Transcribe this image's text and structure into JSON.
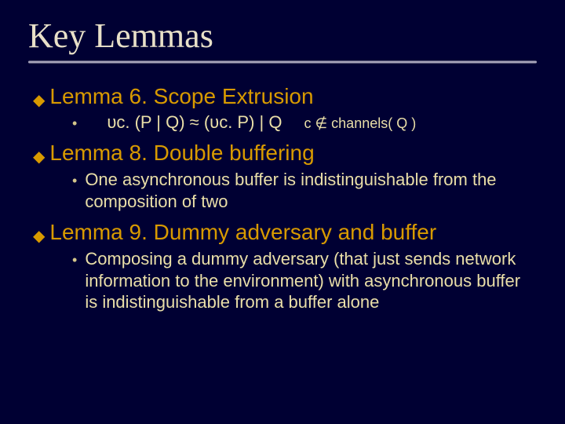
{
  "title": "Key Lemmas",
  "colors": {
    "background": "#000033",
    "title_text": "#e8e0c8",
    "lemma_heading": "#d89a00",
    "body_text": "#eadfa8",
    "diamond_bullet": "#d89a00",
    "round_bullet": "#d4c68a",
    "rule_gradient": [
      "#3a3a5a",
      "#9a96b0",
      "#d4d0e0",
      "#9a96b0",
      "#3a3a5a"
    ]
  },
  "typography": {
    "title_font": "Georgia serif",
    "title_size_pt": 33,
    "lemma_font": "Trebuchet MS sans-serif",
    "lemma_size_pt": 21,
    "body_font": "Comic Sans MS / handwritten sans",
    "body_size_pt": 17,
    "condition_size_pt": 14
  },
  "lemmas": [
    {
      "heading": "Lemma 6. Scope Extrusion",
      "formula": "υc. (P | Q)  ≈  (υc. P) | Q",
      "condition": "c ∉ channels( Q )"
    },
    {
      "heading": "Lemma 8. Double buffering",
      "body": "One asynchronous buffer is indistinguishable from the composition of two"
    },
    {
      "heading": "Lemma 9. Dummy adversary and buffer",
      "body": "Composing a dummy adversary (that just sends network information to the environment) with asynchronous buffer is indistinguishable from a buffer alone"
    }
  ]
}
